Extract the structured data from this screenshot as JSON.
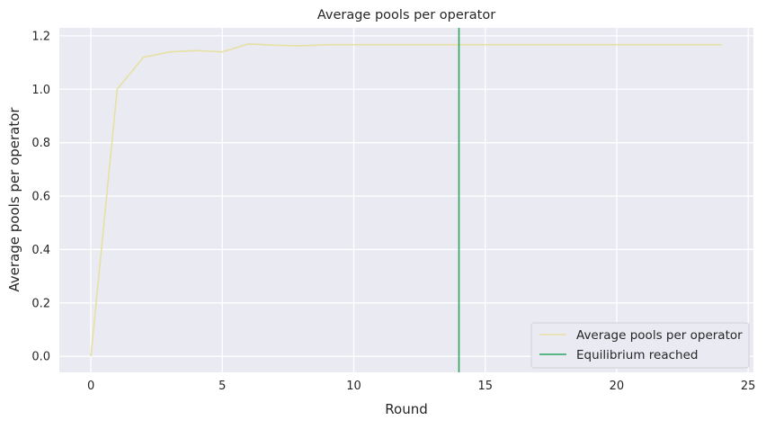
{
  "chart_data": {
    "type": "line",
    "title": "Average pools per operator",
    "xlabel": "Round",
    "ylabel": "Average pools per operator",
    "xlim": [
      -1.2,
      25.2
    ],
    "ylim": [
      -0.06,
      1.23
    ],
    "xticks": [
      0,
      5,
      10,
      15,
      20,
      25
    ],
    "yticks": [
      0.0,
      0.2,
      0.4,
      0.6,
      0.8,
      1.0,
      1.2
    ],
    "xtick_labels": [
      "0",
      "5",
      "10",
      "15",
      "20",
      "25"
    ],
    "ytick_labels": [
      "0.0",
      "0.2",
      "0.4",
      "0.6",
      "0.8",
      "1.0",
      "1.2"
    ],
    "grid": true,
    "legend_position": "lower-right",
    "series": [
      {
        "name": "Average pools per operator",
        "color": "#e6e0a3",
        "x": [
          0,
          1,
          2,
          3,
          4,
          5,
          6,
          7,
          8,
          9,
          10,
          11,
          12,
          13,
          14,
          15,
          16,
          17,
          18,
          19,
          20,
          21,
          22,
          23,
          24
        ],
        "values": [
          0.0,
          1.0,
          1.12,
          1.14,
          1.145,
          1.14,
          1.17,
          1.165,
          1.163,
          1.167,
          1.167,
          1.167,
          1.167,
          1.167,
          1.167,
          1.167,
          1.167,
          1.167,
          1.167,
          1.167,
          1.167,
          1.167,
          1.167,
          1.167,
          1.167
        ]
      }
    ],
    "vlines": [
      {
        "name": "Equilibrium reached",
        "x": 14,
        "color": "#2ca55f"
      }
    ]
  }
}
